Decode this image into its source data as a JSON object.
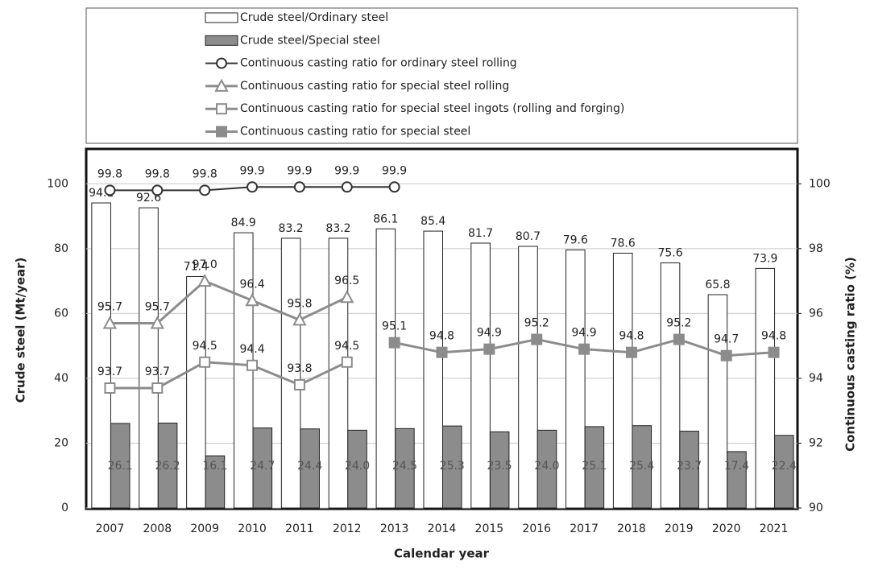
{
  "chart_data": {
    "type": "combo",
    "categories": [
      "2007",
      "2008",
      "2009",
      "2010",
      "2011",
      "2012",
      "2013",
      "2014",
      "2015",
      "2016",
      "2017",
      "2018",
      "2019",
      "2020",
      "2021"
    ],
    "x_label": "Calendar year",
    "y_label": "Crude steel (Mt/year)",
    "y2_label": "Continuous casting ratio (%)",
    "ylim": [
      0,
      110
    ],
    "yticks": [
      0,
      20,
      40,
      60,
      80,
      100
    ],
    "y2lim": [
      90,
      101
    ],
    "y2ticks": [
      90,
      92,
      94,
      96,
      98,
      100
    ],
    "grid": true,
    "series": [
      {
        "name": "Crude steel/Ordinary steel",
        "kind": "bar",
        "color": "#ffffff",
        "values": [
          94.1,
          92.6,
          71.4,
          84.9,
          83.2,
          83.2,
          86.1,
          85.4,
          81.7,
          80.7,
          79.6,
          78.6,
          75.6,
          65.8,
          73.9
        ]
      },
      {
        "name": "Crude steel/Special steel",
        "kind": "bar",
        "color": "#8c8c8c",
        "values": [
          26.1,
          26.2,
          16.1,
          24.7,
          24.4,
          24.0,
          24.5,
          25.3,
          23.5,
          24.0,
          25.1,
          25.4,
          23.7,
          17.4,
          22.4
        ],
        "value_labels": [
          "26.1",
          "26.2",
          "16.1",
          "24.7",
          "24.4",
          "24.0",
          "24.5",
          "25.3",
          "23.5",
          "24.0",
          "25.1",
          "25.4",
          "23.7",
          "17.4",
          "22.4"
        ]
      },
      {
        "name": "Continuous casting ratio for ordinary steel rolling",
        "kind": "line",
        "axis": "y2",
        "color": "#333333",
        "marker": "circle",
        "marker_fill": "#ffffff",
        "values": [
          99.8,
          99.8,
          99.8,
          99.9,
          99.9,
          99.9,
          99.9,
          null,
          null,
          null,
          null,
          null,
          null,
          null,
          null
        ]
      },
      {
        "name": "Continuous casting ratio for special steel rolling",
        "kind": "line",
        "axis": "y2",
        "color": "#8c8c8c",
        "marker": "triangle",
        "marker_fill": "#ffffff",
        "values": [
          95.7,
          95.7,
          97.0,
          96.4,
          95.8,
          96.5,
          null,
          null,
          null,
          null,
          null,
          null,
          null,
          null,
          null
        ],
        "value_labels": [
          "95.7",
          "95.7",
          "97.0",
          "96.4",
          "95.8",
          "96.5",
          null,
          null,
          null,
          null,
          null,
          null,
          null,
          null,
          null
        ]
      },
      {
        "name": "Continuous casting ratio for special steel ingots (rolling and forging)",
        "kind": "line",
        "axis": "y2",
        "color": "#8c8c8c",
        "marker": "square",
        "marker_fill": "#ffffff",
        "values": [
          93.7,
          93.7,
          94.5,
          94.4,
          93.8,
          94.5,
          null,
          null,
          null,
          null,
          null,
          null,
          null,
          null,
          null
        ]
      },
      {
        "name": "Continuous casting ratio for special steel",
        "kind": "line",
        "axis": "y2",
        "color": "#8c8c8c",
        "marker": "square",
        "marker_fill": "#8c8c8c",
        "values": [
          null,
          null,
          null,
          null,
          null,
          null,
          95.1,
          94.8,
          94.9,
          95.2,
          94.9,
          94.8,
          95.2,
          94.7,
          94.8
        ]
      }
    ]
  }
}
